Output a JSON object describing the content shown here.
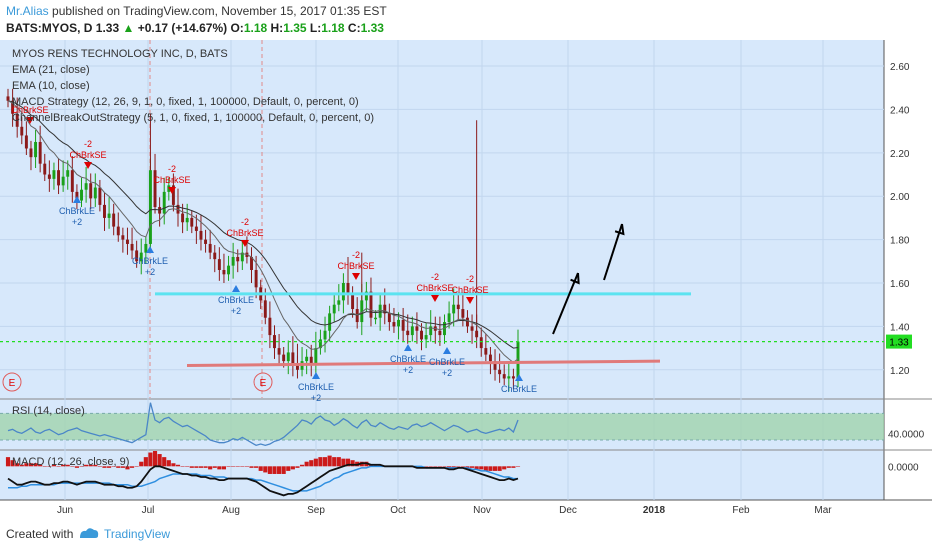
{
  "header": {
    "author": "Mr.Alias",
    "published": "published on TradingView.com, November 15, 2017 01:35 EST",
    "symbol_line": "BATS:MYOS, D 1.33",
    "change": "+0.17 (+14.67%)",
    "o_label": "O:",
    "o_val": "1.18",
    "h_label": "H:",
    "h_val": "1.35",
    "l_label": "L:",
    "l_val": "1.18",
    "c_label": "C:",
    "c_val": "1.33"
  },
  "legend": [
    "MYOS RENS TECHNOLOGY INC, D, BATS",
    "EMA (21, close)",
    "EMA (10, close)",
    "MACD Strategy (12, 26, 9, 1, 0, fixed, 1, 100000, Default, 0, percent, 0)",
    "ChannelBreakOutStrategy (5, 1, 0, fixed, 1, 100000, Default, 0, percent, 0)"
  ],
  "footer": {
    "created": "Created with",
    "brand": "TradingView"
  },
  "colors": {
    "panel_bg": "#d7e8fb",
    "up": "#1aa11a",
    "down": "#8b1a1a",
    "cyan": "#5ce3f0",
    "red_line": "#e07a7a",
    "rsi_line": "#4a86c8",
    "rsi_band": "#9ed3a8",
    "green_dash": "#22dd22",
    "price_tag": "#22dd22"
  },
  "annotations": {
    "short": "ChBrkSE",
    "long": "ChBrkLE",
    "minus2": "-2",
    "plus2": "+2",
    "e": "E"
  },
  "chart_data": [
    {
      "type": "candlestick",
      "title": "MYOS RENS TECHNOLOGY INC, D, BATS",
      "x_ticks": [
        "Jun",
        "Jul",
        "Aug",
        "Sep",
        "Oct",
        "Nov",
        "Dec",
        "2018",
        "Feb",
        "Mar"
      ],
      "y_ticks": [
        1.2,
        1.4,
        1.6,
        1.8,
        2.0,
        2.2,
        2.4,
        2.6
      ],
      "ylim": [
        1.07,
        2.72
      ],
      "last_price": 1.33,
      "levels": {
        "resistance": 1.55,
        "support": 1.21,
        "current_dashed": 1.33
      },
      "close_series": [
        2.44,
        2.38,
        2.32,
        2.28,
        2.22,
        2.18,
        2.25,
        2.15,
        2.1,
        2.08,
        2.12,
        2.05,
        2.09,
        2.12,
        2.02,
        1.98,
        2.03,
        2.06,
        1.99,
        2.04,
        1.96,
        1.9,
        1.92,
        1.86,
        1.82,
        1.8,
        1.78,
        1.75,
        1.7,
        1.74,
        1.78,
        2.12,
        1.95,
        1.92,
        2.02,
        2.05,
        1.96,
        1.92,
        1.88,
        1.9,
        1.86,
        1.84,
        1.8,
        1.78,
        1.74,
        1.71,
        1.66,
        1.64,
        1.68,
        1.72,
        1.7,
        1.74,
        1.72,
        1.66,
        1.58,
        1.52,
        1.44,
        1.36,
        1.3,
        1.27,
        1.24,
        1.28,
        1.22,
        1.2,
        1.24,
        1.26,
        1.22,
        1.3,
        1.34,
        1.38,
        1.46,
        1.5,
        1.52,
        1.6,
        1.55,
        1.48,
        1.42,
        1.52,
        1.56,
        1.44,
        1.44,
        1.5,
        1.46,
        1.42,
        1.4,
        1.43,
        1.38,
        1.36,
        1.4,
        1.38,
        1.34,
        1.36,
        1.4,
        1.38,
        1.36,
        1.42,
        1.46,
        1.5,
        1.48,
        1.44,
        1.4,
        1.38,
        1.35,
        1.3,
        1.27,
        1.24,
        1.2,
        1.18,
        1.16,
        1.17,
        1.16,
        1.33
      ]
    },
    {
      "type": "line",
      "title": "RSI (14, close)",
      "y_ticks": [
        40.0
      ],
      "y_tick_label": "40.0000",
      "band": [
        30,
        70
      ],
      "ylim": [
        18,
        90
      ],
      "values": [
        44,
        46,
        42,
        40,
        44,
        48,
        42,
        40,
        44,
        46,
        42,
        38,
        40,
        44,
        46,
        48,
        44,
        42,
        40,
        38,
        36,
        38,
        36,
        34,
        32,
        30,
        28,
        26,
        30,
        34,
        38,
        86,
        60,
        56,
        62,
        64,
        58,
        54,
        50,
        52,
        48,
        44,
        40,
        36,
        30,
        28,
        26,
        26,
        28,
        32,
        30,
        34,
        30,
        26,
        22,
        24,
        22,
        24,
        28,
        30,
        34,
        40,
        46,
        52,
        60,
        58,
        54,
        62,
        66,
        60,
        58,
        52,
        56,
        62,
        58,
        52,
        48,
        56,
        60,
        52,
        50,
        56,
        52,
        48,
        46,
        50,
        48,
        46,
        52,
        54,
        50,
        52,
        56,
        52,
        48,
        44,
        48,
        52,
        50,
        46,
        42,
        44,
        46,
        42,
        40,
        42,
        44,
        46,
        44,
        48,
        42,
        60
      ]
    },
    {
      "type": "line",
      "title": "MACD (12, 26, close, 9)",
      "y_ticks": [
        0.0
      ],
      "y_tick_label": "0.0000",
      "ylim": [
        -0.22,
        0.1
      ],
      "series": [
        {
          "name": "MACD",
          "values": [
            -0.08,
            -0.1,
            -0.12,
            -0.12,
            -0.11,
            -0.1,
            -0.1,
            -0.11,
            -0.12,
            -0.12,
            -0.11,
            -0.11,
            -0.1,
            -0.1,
            -0.11,
            -0.12,
            -0.11,
            -0.1,
            -0.1,
            -0.1,
            -0.11,
            -0.12,
            -0.12,
            -0.12,
            -0.13,
            -0.13,
            -0.14,
            -0.14,
            -0.13,
            -0.1,
            -0.06,
            -0.02,
            0.0,
            0.0,
            -0.01,
            -0.02,
            -0.03,
            -0.04,
            -0.05,
            -0.05,
            -0.06,
            -0.06,
            -0.07,
            -0.07,
            -0.08,
            -0.08,
            -0.09,
            -0.09,
            -0.08,
            -0.08,
            -0.08,
            -0.08,
            -0.08,
            -0.09,
            -0.1,
            -0.12,
            -0.14,
            -0.16,
            -0.17,
            -0.18,
            -0.19,
            -0.18,
            -0.18,
            -0.17,
            -0.15,
            -0.13,
            -0.11,
            -0.09,
            -0.07,
            -0.05,
            -0.03,
            -0.02,
            -0.01,
            0.0,
            0.01,
            0.01,
            0.01,
            0.02,
            0.02,
            0.01,
            0.01,
            0.01,
            0.0,
            0.0,
            0.0,
            0.0,
            0.0,
            0.0,
            0.0,
            -0.01,
            -0.01,
            -0.01,
            -0.01,
            -0.01,
            -0.01,
            -0.01,
            -0.02,
            -0.02,
            -0.01,
            -0.01,
            -0.02,
            -0.03,
            -0.04,
            -0.05,
            -0.06,
            -0.07,
            -0.08,
            -0.09,
            -0.09,
            -0.08,
            -0.09,
            -0.08
          ]
        },
        {
          "name": "Signal",
          "values": [
            -0.14,
            -0.14,
            -0.14,
            -0.13,
            -0.13,
            -0.12,
            -0.12,
            -0.12,
            -0.12,
            -0.12,
            -0.12,
            -0.11,
            -0.11,
            -0.11,
            -0.11,
            -0.11,
            -0.11,
            -0.11,
            -0.11,
            -0.11,
            -0.11,
            -0.11,
            -0.11,
            -0.12,
            -0.12,
            -0.12,
            -0.12,
            -0.13,
            -0.13,
            -0.13,
            -0.12,
            -0.11,
            -0.1,
            -0.08,
            -0.07,
            -0.06,
            -0.05,
            -0.05,
            -0.05,
            -0.05,
            -0.05,
            -0.05,
            -0.06,
            -0.06,
            -0.06,
            -0.07,
            -0.07,
            -0.07,
            -0.08,
            -0.08,
            -0.08,
            -0.08,
            -0.08,
            -0.08,
            -0.09,
            -0.09,
            -0.1,
            -0.11,
            -0.12,
            -0.13,
            -0.14,
            -0.15,
            -0.16,
            -0.16,
            -0.16,
            -0.16,
            -0.15,
            -0.14,
            -0.13,
            -0.11,
            -0.1,
            -0.08,
            -0.07,
            -0.05,
            -0.04,
            -0.03,
            -0.02,
            -0.01,
            -0.01,
            0.0,
            0.0,
            0.0,
            0.0,
            0.0,
            0.0,
            0.0,
            0.0,
            0.0,
            0.0,
            0.0,
            0.0,
            -0.01,
            -0.01,
            -0.01,
            -0.01,
            -0.01,
            -0.01,
            -0.01,
            -0.01,
            -0.01,
            -0.01,
            -0.02,
            -0.02,
            -0.03,
            -0.03,
            -0.04,
            -0.05,
            -0.06,
            -0.07,
            -0.07,
            -0.08,
            -0.08
          ]
        }
      ]
    }
  ]
}
